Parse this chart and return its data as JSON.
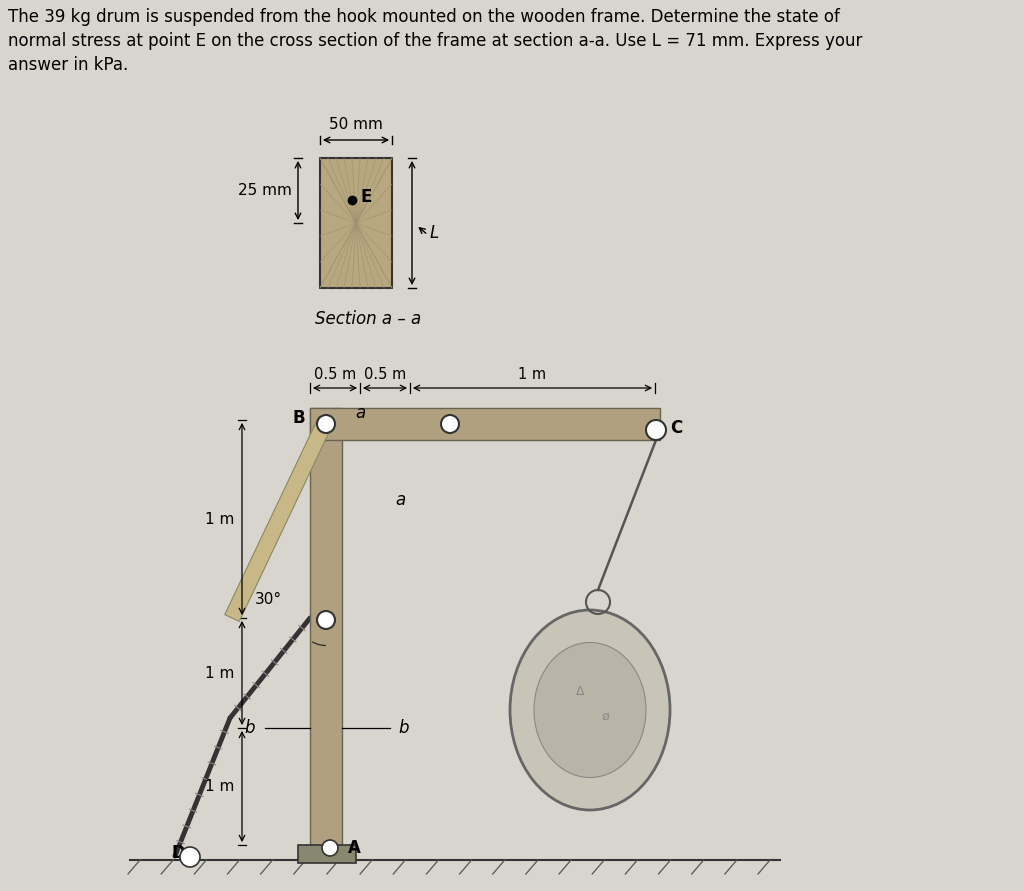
{
  "title_line1": "The 39 kg drum is suspended from the hook mounted on the wooden frame. Determine the state of",
  "title_line2": "normal stress at point E on the cross section of the frame at section a-a. Use L = 71 mm. Express your",
  "title_line3": "answer in kPa.",
  "bg_color": "#d8d4ce",
  "frame_wood_color": "#b0a080",
  "frame_edge_color": "#666650",
  "brace_color": "#c8b888",
  "brace_edge_color": "#888860",
  "section_fill": "#b8a880",
  "section_edge": "#444444",
  "grain_color": "#a09070",
  "rope_color": "#444444",
  "pin_color": "#ffffff",
  "pin_edge": "#333333",
  "drum_outer_color": "#c8c4b8",
  "drum_inner_color": "#b8b4a8",
  "drum_edge_color": "#666666",
  "ground_color": "#333333"
}
